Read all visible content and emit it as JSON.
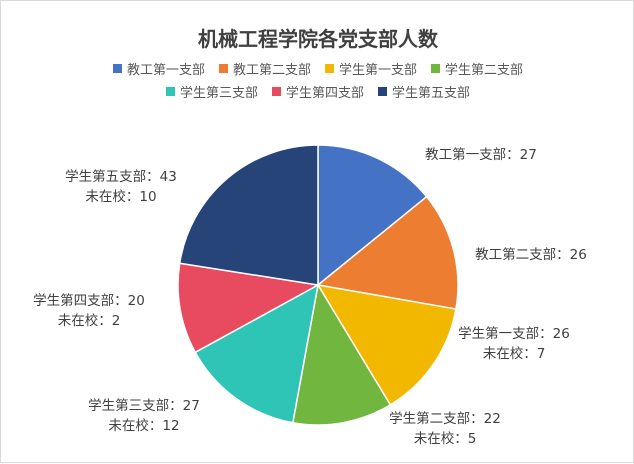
{
  "chart_data": {
    "type": "pie",
    "title": "机械工程学院各党支部人数",
    "legend_position": "top",
    "categories": [
      "教工第一支部",
      "教工第二支部",
      "学生第一支部",
      "学生第二支部",
      "学生第三支部",
      "学生第四支部",
      "学生第五支部"
    ],
    "values": [
      27,
      26,
      26,
      22,
      27,
      20,
      43
    ],
    "not_at_school_label": "未在校",
    "not_at_school": [
      null,
      null,
      7,
      5,
      12,
      2,
      10
    ],
    "colors": [
      "#4472C4",
      "#ED7D31",
      "#F2B800",
      "#70B63F",
      "#2EC4B6",
      "#E84B5F",
      "#264478"
    ],
    "start_angle_deg": 0,
    "direction": "clockwise"
  }
}
